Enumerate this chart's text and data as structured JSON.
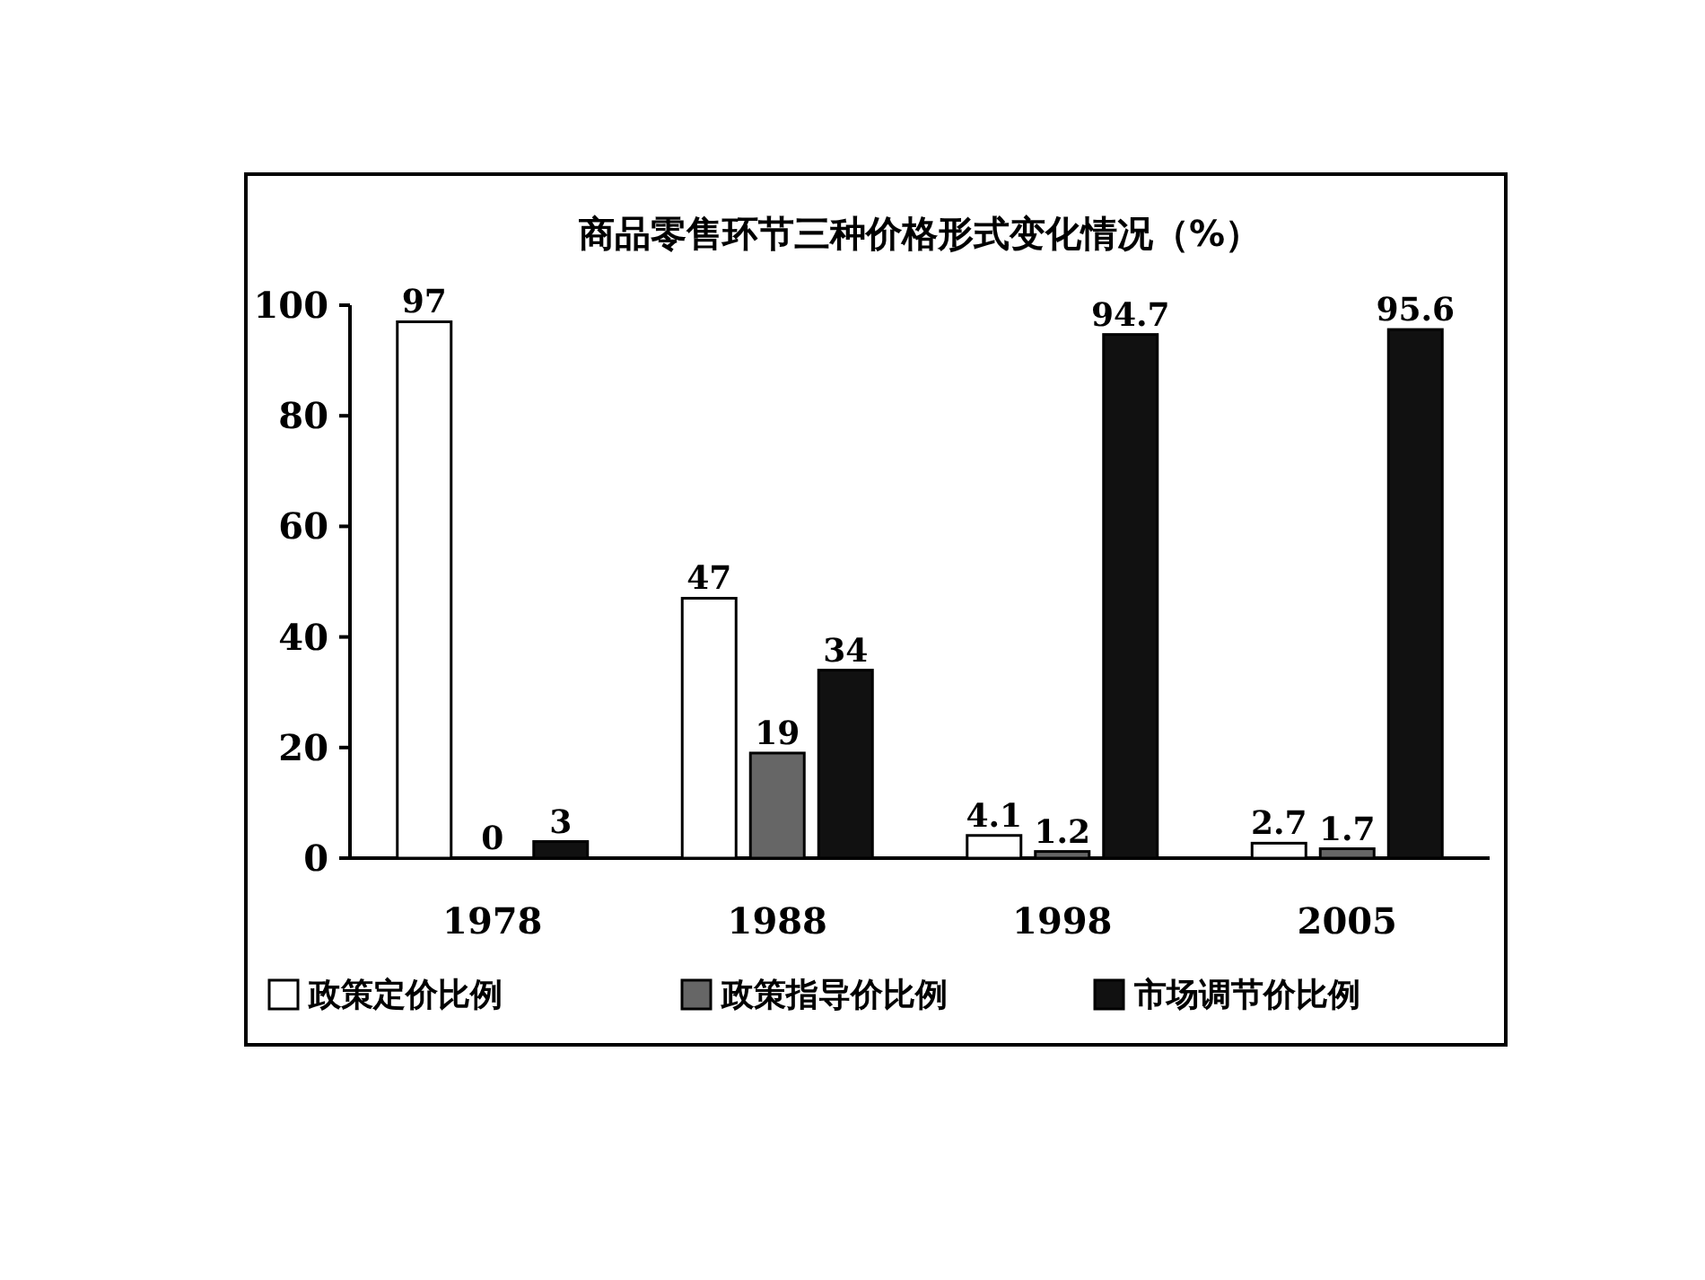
{
  "chart_data": {
    "type": "bar",
    "title": "商品零售环节三种价格形式变化情况（%）",
    "categories": [
      "1978",
      "1988",
      "1998",
      "2005"
    ],
    "series": [
      {
        "name": "政策定价比例",
        "color": "#ffffff",
        "values": [
          97,
          47,
          4.1,
          2.7
        ]
      },
      {
        "name": "政策指导价比例",
        "color": "#666666",
        "values": [
          0,
          19,
          1.2,
          1.7
        ]
      },
      {
        "name": "市场调节价比例",
        "color": "#111111",
        "values": [
          3,
          34,
          94.7,
          95.6
        ]
      }
    ],
    "ylim": [
      0,
      100
    ],
    "yticks": [
      0,
      20,
      40,
      60,
      80,
      100
    ],
    "data_labels": true,
    "legend": "bottom",
    "grid": false
  }
}
